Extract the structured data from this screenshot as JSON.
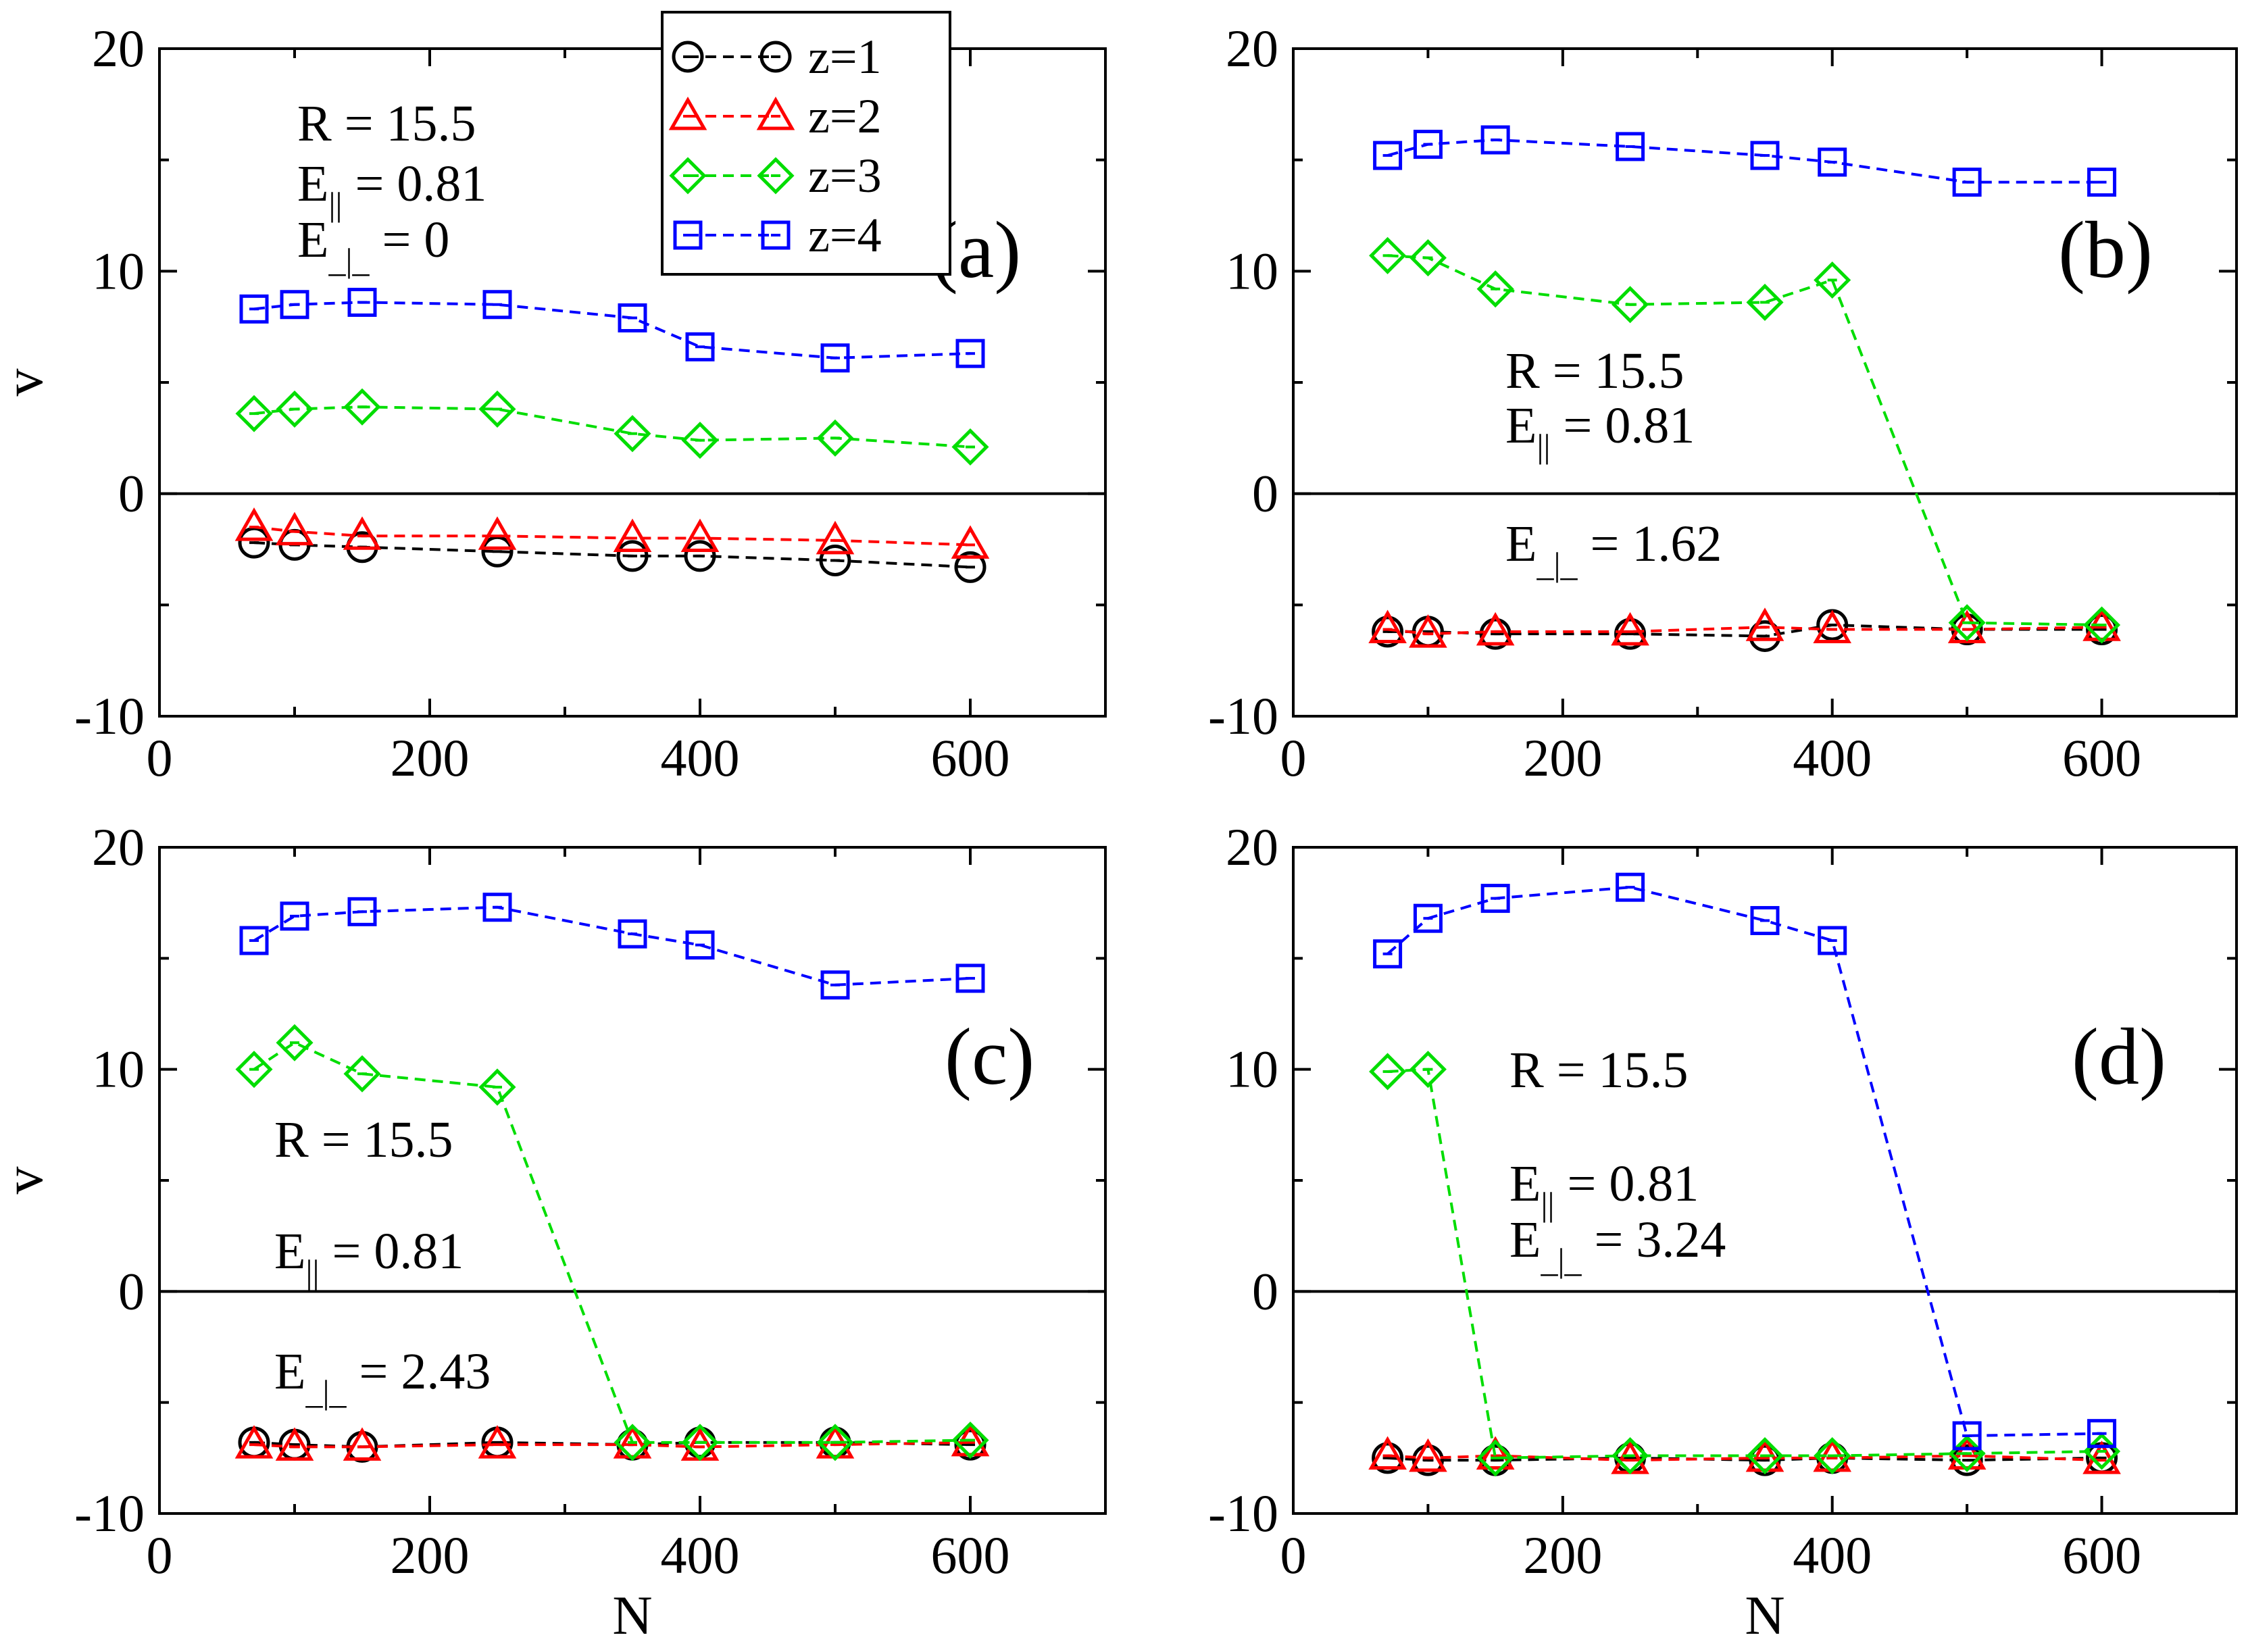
{
  "colors": {
    "z1": "#000000",
    "z2": "#ff0000",
    "z3": "#00dd00",
    "z4": "#0000ff"
  },
  "legend": {
    "entries": [
      {
        "label": "z=1",
        "marker": "circle",
        "color": "#000000"
      },
      {
        "label": "z=2",
        "marker": "triangle",
        "color": "#ff0000"
      },
      {
        "label": "z=3",
        "marker": "diamond",
        "color": "#00dd00"
      },
      {
        "label": "z=4",
        "marker": "square",
        "color": "#0000ff"
      }
    ]
  },
  "chart_data": [
    {
      "type": "line",
      "panel_label": "(a)",
      "xlabel": "",
      "ylabel": "v",
      "xlim": [
        0,
        700
      ],
      "ylim": [
        -10,
        20
      ],
      "xticks": [
        "0",
        "200",
        "400",
        "600"
      ],
      "yticks": [
        "-10",
        "0",
        "10",
        "20"
      ],
      "hline": 0,
      "annotations": {
        "R": "R = 15.5",
        "Epar": "0.81",
        "Eperp": "0"
      },
      "x": [
        70,
        100,
        150,
        250,
        350,
        400,
        500,
        600
      ],
      "series": [
        {
          "name": "z=1",
          "values": [
            -2.2,
            -2.3,
            -2.4,
            -2.6,
            -2.8,
            -2.8,
            -3.0,
            -3.3
          ]
        },
        {
          "name": "z=2",
          "values": [
            -1.5,
            -1.7,
            -1.9,
            -1.9,
            -2.0,
            -2.0,
            -2.1,
            -2.3
          ]
        },
        {
          "name": "z=3",
          "values": [
            3.6,
            3.8,
            3.9,
            3.8,
            2.7,
            2.4,
            2.5,
            2.1
          ]
        },
        {
          "name": "z=4",
          "values": [
            8.3,
            8.5,
            8.6,
            8.5,
            7.9,
            6.6,
            6.1,
            6.3
          ]
        }
      ]
    },
    {
      "type": "line",
      "panel_label": "(b)",
      "xlabel": "",
      "ylabel": "",
      "xlim": [
        0,
        700
      ],
      "ylim": [
        -10,
        20
      ],
      "xticks": [
        "0",
        "200",
        "400",
        "600"
      ],
      "yticks": [
        "-10",
        "0",
        "10",
        "20"
      ],
      "hline": 0,
      "annotations": {
        "R": "R = 15.5",
        "Epar": "0.81",
        "Eperp": "1.62"
      },
      "x": [
        70,
        100,
        150,
        250,
        350,
        400,
        500,
        600
      ],
      "series": [
        {
          "name": "z=1",
          "values": [
            -6.2,
            -6.2,
            -6.3,
            -6.3,
            -6.4,
            -5.9,
            -6.1,
            -6.1
          ]
        },
        {
          "name": "z=2",
          "values": [
            -6.1,
            -6.3,
            -6.2,
            -6.2,
            -6.0,
            -6.1,
            -6.1,
            -6.0
          ]
        },
        {
          "name": "z=3",
          "values": [
            10.7,
            10.6,
            9.2,
            8.5,
            8.6,
            9.6,
            -5.8,
            -5.9
          ]
        },
        {
          "name": "z=4",
          "values": [
            15.2,
            15.7,
            15.9,
            15.6,
            15.2,
            14.9,
            14.0,
            14.0
          ]
        }
      ]
    },
    {
      "type": "line",
      "panel_label": "(c)",
      "xlabel": "N",
      "ylabel": "v",
      "xlim": [
        0,
        700
      ],
      "ylim": [
        -10,
        20
      ],
      "xticks": [
        "0",
        "200",
        "400",
        "600"
      ],
      "yticks": [
        "-10",
        "0",
        "10",
        "20"
      ],
      "hline": 0,
      "annotations": {
        "R": "R = 15.5",
        "Epar": "0.81",
        "Eperp": "2.43"
      },
      "x": [
        70,
        100,
        150,
        250,
        350,
        400,
        500,
        600
      ],
      "series": [
        {
          "name": "z=1",
          "values": [
            -6.8,
            -6.9,
            -7.0,
            -6.8,
            -6.9,
            -6.8,
            -6.8,
            -6.9
          ]
        },
        {
          "name": "z=2",
          "values": [
            -6.9,
            -7.0,
            -7.0,
            -6.9,
            -6.9,
            -7.0,
            -6.9,
            -6.8
          ]
        },
        {
          "name": "z=3",
          "values": [
            10.0,
            11.2,
            9.8,
            9.2,
            -6.8,
            -6.8,
            -6.8,
            -6.7
          ]
        },
        {
          "name": "z=4",
          "values": [
            15.8,
            16.9,
            17.1,
            17.3,
            16.1,
            15.6,
            13.8,
            14.1
          ]
        }
      ]
    },
    {
      "type": "line",
      "panel_label": "(d)",
      "xlabel": "N",
      "ylabel": "",
      "xlim": [
        0,
        700
      ],
      "ylim": [
        -10,
        20
      ],
      "xticks": [
        "0",
        "200",
        "400",
        "600"
      ],
      "yticks": [
        "-10",
        "0",
        "10",
        "20"
      ],
      "hline": 0,
      "annotations": {
        "R": "R = 15.5",
        "Epar": "0.81",
        "Eperp": "3.24"
      },
      "x": [
        70,
        100,
        150,
        250,
        350,
        400,
        500,
        600
      ],
      "series": [
        {
          "name": "z=1",
          "values": [
            -7.5,
            -7.6,
            -7.6,
            -7.5,
            -7.6,
            -7.5,
            -7.6,
            -7.5
          ]
        },
        {
          "name": "z=2",
          "values": [
            -7.4,
            -7.5,
            -7.4,
            -7.6,
            -7.5,
            -7.5,
            -7.4,
            -7.6
          ]
        },
        {
          "name": "z=3",
          "values": [
            9.9,
            10.0,
            -7.5,
            -7.4,
            -7.4,
            -7.4,
            -7.3,
            -7.2
          ]
        },
        {
          "name": "z=4",
          "values": [
            15.2,
            16.8,
            17.7,
            18.2,
            16.7,
            15.8,
            -6.5,
            -6.4
          ]
        }
      ]
    }
  ]
}
